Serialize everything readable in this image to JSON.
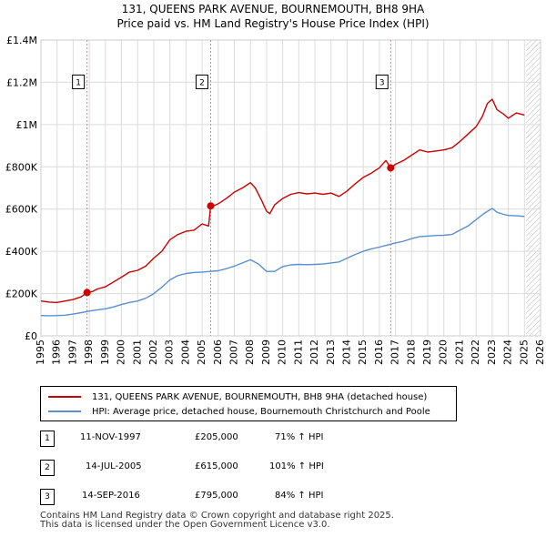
{
  "title": "131, QUEENS PARK AVENUE, BOURNEMOUTH, BH8 9HA",
  "subtitle": "Price paid vs. HM Land Registry's House Price Index (HPI)",
  "legend": {
    "property": "131, QUEENS PARK AVENUE, BOURNEMOUTH, BH8 9HA (detached house)",
    "hpi": "HPI: Average price, detached house, Bournemouth Christchurch and Poole"
  },
  "colors": {
    "property": "#cc0000",
    "hpi": "#5b8fd0",
    "grid": "#dcdcdc",
    "projection": "#d8d8d8"
  },
  "sales": [
    {
      "num": "1",
      "date": "11-NOV-1997",
      "price": "£205,000",
      "hpi": "71% ↑ HPI"
    },
    {
      "num": "2",
      "date": "14-JUL-2005",
      "price": "£615,000",
      "hpi": "101% ↑ HPI"
    },
    {
      "num": "3",
      "date": "14-SEP-2016",
      "price": "£795,000",
      "hpi": "84% ↑ HPI"
    }
  ],
  "footer": {
    "line1": "Contains HM Land Registry data © Crown copyright and database right 2025.",
    "line2": "This data is licensed under the Open Government Licence v3.0."
  },
  "chart_data": {
    "type": "line",
    "title": "131, QUEENS PARK AVENUE, BOURNEMOUTH, BH8 9HA",
    "xlim": [
      1995,
      2026
    ],
    "ylim": [
      0,
      1400000
    ],
    "x_ticks": [
      1995,
      1996,
      1997,
      1998,
      1999,
      2000,
      2001,
      2002,
      2003,
      2004,
      2005,
      2006,
      2007,
      2008,
      2009,
      2010,
      2011,
      2012,
      2013,
      2014,
      2015,
      2016,
      2017,
      2018,
      2019,
      2020,
      2021,
      2022,
      2023,
      2024,
      2025,
      2026
    ],
    "y_ticks": [
      {
        "value": 0,
        "label": "£0"
      },
      {
        "value": 200000,
        "label": "£200K"
      },
      {
        "value": 400000,
        "label": "£400K"
      },
      {
        "value": 600000,
        "label": "£600K"
      },
      {
        "value": 800000,
        "label": "£800K"
      },
      {
        "value": 1000000,
        "label": "£1M"
      },
      {
        "value": 1200000,
        "label": "£1.2M"
      },
      {
        "value": 1400000,
        "label": "£1.4M"
      }
    ],
    "projection_start": 2025.1,
    "sale_markers": [
      {
        "label": "1",
        "x": 1997.86,
        "y": 205000
      },
      {
        "label": "2",
        "x": 2005.53,
        "y": 615000
      },
      {
        "label": "3",
        "x": 2016.7,
        "y": 795000
      }
    ],
    "series": [
      {
        "name": "131, QUEENS PARK AVENUE, BOURNEMOUTH, BH8 9HA (detached house)",
        "color": "#cc0000",
        "x": [
          1995.0,
          1995.5,
          1996.0,
          1996.5,
          1997.0,
          1997.5,
          1997.86,
          1998.2,
          1998.5,
          1999.0,
          1999.5,
          2000.0,
          2000.5,
          2001.0,
          2001.5,
          2002.0,
          2002.5,
          2003.0,
          2003.5,
          2004.0,
          2004.5,
          2005.0,
          2005.4,
          2005.53,
          2005.8,
          2006.0,
          2006.5,
          2007.0,
          2007.5,
          2008.0,
          2008.3,
          2008.7,
          2009.0,
          2009.2,
          2009.5,
          2010.0,
          2010.5,
          2011.0,
          2011.5,
          2012.0,
          2012.5,
          2013.0,
          2013.5,
          2014.0,
          2014.5,
          2015.0,
          2015.5,
          2016.0,
          2016.4,
          2016.7,
          2017.0,
          2017.5,
          2018.0,
          2018.5,
          2019.0,
          2019.5,
          2020.0,
          2020.5,
          2021.0,
          2021.5,
          2022.0,
          2022.4,
          2022.7,
          2023.0,
          2023.3,
          2023.7,
          2024.0,
          2024.5,
          2025.0
        ],
        "values": [
          165000,
          160000,
          158000,
          165000,
          172000,
          185000,
          205000,
          210000,
          222000,
          232000,
          255000,
          278000,
          302000,
          310000,
          330000,
          368000,
          400000,
          455000,
          480000,
          495000,
          500000,
          530000,
          520000,
          615000,
          618000,
          625000,
          650000,
          680000,
          700000,
          725000,
          700000,
          640000,
          590000,
          578000,
          620000,
          650000,
          670000,
          678000,
          672000,
          676000,
          670000,
          676000,
          660000,
          686000,
          720000,
          750000,
          770000,
          795000,
          830000,
          795000,
          812000,
          830000,
          855000,
          880000,
          870000,
          875000,
          880000,
          890000,
          920000,
          955000,
          990000,
          1040000,
          1100000,
          1120000,
          1070000,
          1050000,
          1030000,
          1055000,
          1045000
        ]
      },
      {
        "name": "HPI: Average price, detached house, Bournemouth Christchurch and Poole",
        "color": "#5b8fd0",
        "x": [
          1995.0,
          1995.5,
          1996.0,
          1996.5,
          1997.0,
          1997.5,
          1998.0,
          1998.5,
          1999.0,
          1999.5,
          2000.0,
          2000.5,
          2001.0,
          2001.5,
          2002.0,
          2002.5,
          2003.0,
          2003.5,
          2004.0,
          2004.5,
          2005.0,
          2005.5,
          2006.0,
          2006.5,
          2007.0,
          2007.5,
          2008.0,
          2008.5,
          2009.0,
          2009.5,
          2010.0,
          2010.5,
          2011.0,
          2011.5,
          2012.0,
          2012.5,
          2013.0,
          2013.5,
          2014.0,
          2014.5,
          2015.0,
          2015.5,
          2016.0,
          2016.5,
          2017.0,
          2017.5,
          2018.0,
          2018.5,
          2019.0,
          2019.5,
          2020.0,
          2020.5,
          2021.0,
          2021.5,
          2022.0,
          2022.5,
          2023.0,
          2023.3,
          2023.7,
          2024.0,
          2024.5,
          2025.0
        ],
        "values": [
          96000,
          95000,
          96000,
          98000,
          103000,
          110000,
          117000,
          123000,
          128000,
          137000,
          148000,
          158000,
          165000,
          178000,
          200000,
          230000,
          265000,
          285000,
          295000,
          300000,
          302000,
          305000,
          308000,
          318000,
          330000,
          345000,
          360000,
          340000,
          305000,
          305000,
          328000,
          336000,
          338000,
          337000,
          338000,
          340000,
          345000,
          350000,
          368000,
          385000,
          400000,
          412000,
          420000,
          430000,
          440000,
          448000,
          460000,
          470000,
          472000,
          475000,
          476000,
          480000,
          500000,
          520000,
          550000,
          580000,
          603000,
          585000,
          575000,
          570000,
          568000,
          565000
        ]
      }
    ]
  }
}
